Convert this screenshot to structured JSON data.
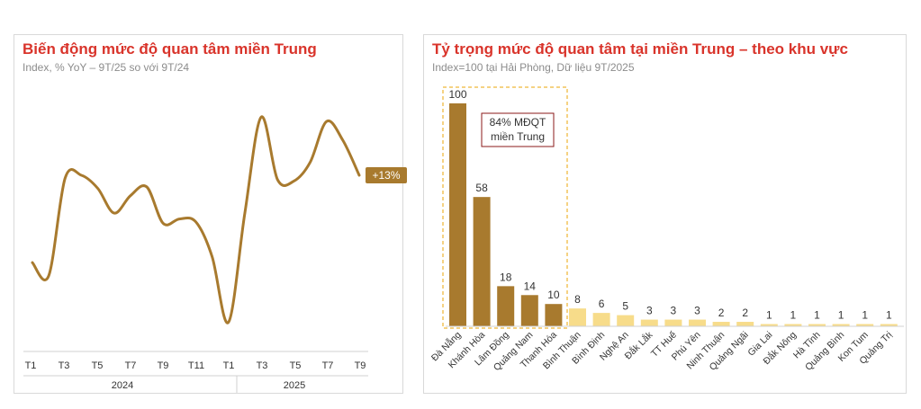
{
  "left": {
    "title": "Biến động mức độ quan tâm miền Trung",
    "subtitle": "Index, % YoY – 9T/25 so với 9T/24",
    "badge": "+13%"
  },
  "right": {
    "title": "Tỷ trọng mức độ quan tâm tại miền Trung – theo khu vực",
    "subtitle": "Index=100 tại Hải Phòng, Dữ liệu 9T/2025",
    "annotation_line1": "84% MĐQT",
    "annotation_line2": "miền Trung"
  },
  "colors": {
    "title": "#d9342b",
    "line": "#a87a2e",
    "bar_dark": "#a87a2e",
    "bar_light": "#f7dc8a",
    "badge_bg": "#a87a2e",
    "annotation_border": "#8b1a1a",
    "highlight_border": "#f2c35a"
  },
  "chart_data": [
    {
      "type": "line",
      "title": "Biến động mức độ quan tâm miền Trung",
      "subtitle": "Index, % YoY – 9T/25 so với 9T/24",
      "x_tick_labels": [
        "T1",
        "T3",
        "T5",
        "T7",
        "T9",
        "T11",
        "T1",
        "T3",
        "T5",
        "T7",
        "T9"
      ],
      "year_groups": [
        {
          "label": "2024",
          "ticks": [
            "T1",
            "T3",
            "T5",
            "T7",
            "T9",
            "T11"
          ]
        },
        {
          "label": "2025",
          "ticks": [
            "T1",
            "T3",
            "T5",
            "T7",
            "T9"
          ]
        }
      ],
      "series": [
        {
          "points": [
            {
              "x": 0,
              "y": 26
            },
            {
              "x": 1,
              "y": 17
            },
            {
              "x": 2,
              "y": 84
            },
            {
              "x": 3,
              "y": 86
            },
            {
              "x": 4,
              "y": 77
            },
            {
              "x": 5,
              "y": 60
            },
            {
              "x": 6,
              "y": 72
            },
            {
              "x": 7,
              "y": 78
            },
            {
              "x": 8,
              "y": 53
            },
            {
              "x": 9,
              "y": 56
            },
            {
              "x": 10,
              "y": 54
            },
            {
              "x": 11,
              "y": 30
            },
            {
              "x": 12,
              "y": -15
            },
            {
              "x": 13,
              "y": 60
            },
            {
              "x": 14,
              "y": 126
            },
            {
              "x": 15,
              "y": 83
            },
            {
              "x": 16,
              "y": 82
            },
            {
              "x": 17,
              "y": 95
            },
            {
              "x": 18,
              "y": 123
            },
            {
              "x": 19,
              "y": 110
            },
            {
              "x": 20,
              "y": 86
            }
          ],
          "end_label": "+13%"
        }
      ],
      "ylim": [
        -40,
        170
      ],
      "grid": false,
      "y_axis_shown": false
    },
    {
      "type": "bar",
      "title": "Tỷ trọng mức độ quan tâm tại miền Trung – theo khu vực",
      "subtitle": "Index=100 tại Hải Phòng, Dữ liệu 9T/2025",
      "categories": [
        "Đà Nẵng",
        "Khánh Hòa",
        "Lâm Đồng",
        "Quảng Nam",
        "Thanh Hóa",
        "Bình Thuận",
        "Bình Định",
        "Nghệ An",
        "Đắk Lắk",
        "TT Huế",
        "Phú Yên",
        "Ninh Thuận",
        "Quảng Ngãi",
        "Gia Lai",
        "Đắk Nông",
        "Hà Tĩnh",
        "Quảng Bình",
        "Kon Tum",
        "Quảng Trị"
      ],
      "values": [
        100,
        58,
        18,
        14,
        10,
        8,
        6,
        5,
        3,
        3,
        3,
        2,
        2,
        1,
        1,
        1,
        1,
        1,
        1
      ],
      "highlighted_count": 5,
      "annotation": "84% MĐQT miền Trung",
      "ylim": [
        0,
        100
      ],
      "grid": false
    }
  ]
}
